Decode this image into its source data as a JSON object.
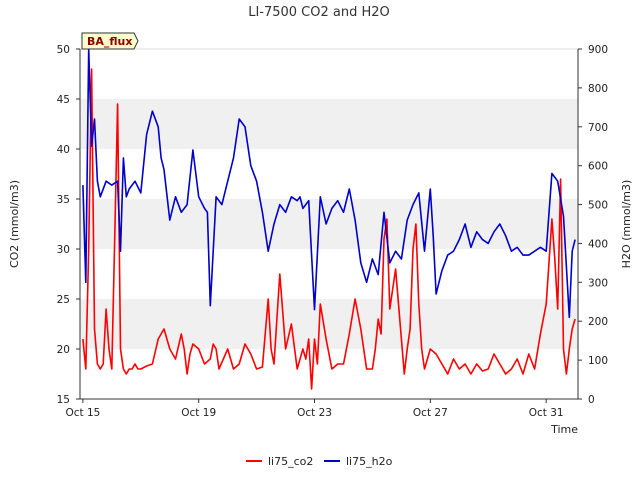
{
  "chart_data": {
    "type": "line",
    "title": "LI-7500 CO2 and H2O",
    "badge": "BA_flux",
    "xlabel": "Time",
    "ylabel_left": "CO2 (mmol/m3)",
    "ylabel_right": "H2O (mmol/m3)",
    "x_unit": "days since Oct 15 00:00",
    "xlim": [
      -0.1,
      17.1
    ],
    "ylim_left": [
      15,
      50
    ],
    "ylim_right": [
      0,
      900
    ],
    "yticks_left": [
      15,
      20,
      25,
      30,
      35,
      40,
      45,
      50
    ],
    "yticks_right": [
      0,
      100,
      200,
      300,
      400,
      500,
      600,
      700,
      800,
      900
    ],
    "xticks": [
      {
        "value": 0,
        "label": "Oct 15"
      },
      {
        "value": 4,
        "label": "Oct 19"
      },
      {
        "value": 8,
        "label": "Oct 23"
      },
      {
        "value": 12,
        "label": "Oct 27"
      },
      {
        "value": 16,
        "label": "Oct 31"
      }
    ],
    "shaded_bands_left_axis": [
      [
        20,
        25
      ],
      [
        30,
        35
      ],
      [
        40,
        45
      ]
    ],
    "series": [
      {
        "name": "li75_co2",
        "axis": "left",
        "color": "#ff0000",
        "x": [
          0.0,
          0.1,
          0.2,
          0.3,
          0.4,
          0.5,
          0.6,
          0.7,
          0.8,
          0.9,
          1.0,
          1.1,
          1.2,
          1.3,
          1.4,
          1.5,
          1.6,
          1.7,
          1.8,
          1.9,
          2.0,
          2.2,
          2.4,
          2.6,
          2.8,
          3.0,
          3.2,
          3.4,
          3.5,
          3.6,
          3.7,
          3.8,
          4.0,
          4.2,
          4.4,
          4.5,
          4.6,
          4.7,
          5.0,
          5.2,
          5.4,
          5.6,
          5.8,
          6.0,
          6.2,
          6.4,
          6.5,
          6.6,
          6.8,
          7.0,
          7.2,
          7.4,
          7.6,
          7.7,
          7.8,
          7.9,
          8.0,
          8.1,
          8.2,
          8.4,
          8.6,
          8.8,
          9.0,
          9.2,
          9.4,
          9.6,
          9.8,
          10.0,
          10.1,
          10.2,
          10.3,
          10.4,
          10.5,
          10.6,
          10.8,
          11.0,
          11.1,
          11.2,
          11.3,
          11.4,
          11.5,
          11.6,
          11.7,
          11.8,
          12.0,
          12.2,
          12.4,
          12.6,
          12.8,
          13.0,
          13.2,
          13.4,
          13.6,
          13.8,
          14.0,
          14.2,
          14.4,
          14.6,
          14.8,
          15.0,
          15.2,
          15.4,
          15.6,
          15.8,
          16.0,
          16.2,
          16.3,
          16.4,
          16.5,
          16.6,
          16.7,
          16.8,
          16.9,
          17.0
        ],
        "values": [
          21.0,
          18.0,
          30.0,
          48.0,
          22.0,
          18.5,
          18.0,
          18.5,
          24.0,
          20.0,
          18.0,
          31.0,
          44.5,
          20.0,
          18.0,
          17.5,
          18.0,
          18.0,
          18.5,
          18.0,
          18.0,
          18.3,
          18.5,
          21.0,
          22.0,
          20.0,
          19.0,
          21.5,
          20.0,
          17.5,
          19.5,
          20.5,
          20.0,
          18.5,
          19.0,
          20.5,
          20.0,
          18.0,
          20.0,
          18.0,
          18.5,
          20.5,
          19.5,
          18.0,
          18.2,
          25.0,
          20.0,
          18.5,
          27.5,
          20.0,
          22.5,
          18.0,
          20.0,
          19.0,
          21.0,
          16.0,
          21.0,
          18.5,
          24.5,
          21.0,
          18.0,
          18.5,
          18.5,
          21.5,
          25.0,
          22.0,
          18.0,
          18.0,
          20.0,
          23.0,
          21.5,
          31.0,
          33.0,
          24.0,
          28.0,
          21.0,
          17.5,
          20.0,
          22.0,
          30.0,
          32.5,
          24.5,
          20.0,
          18.0,
          20.0,
          19.5,
          18.5,
          17.5,
          19.0,
          18.0,
          18.5,
          17.5,
          18.5,
          17.8,
          18.0,
          19.5,
          18.5,
          17.5,
          18.0,
          19.0,
          17.5,
          19.5,
          18.0,
          21.5,
          24.5,
          33.0,
          29.0,
          24.0,
          37.0,
          20.0,
          17.5,
          20.0,
          22.0,
          23.0
        ]
      },
      {
        "name": "li75_h2o",
        "axis": "right",
        "color": "#0000cc",
        "x": [
          0.0,
          0.1,
          0.2,
          0.3,
          0.4,
          0.5,
          0.6,
          0.8,
          1.0,
          1.2,
          1.3,
          1.4,
          1.5,
          1.6,
          1.8,
          2.0,
          2.2,
          2.4,
          2.6,
          2.7,
          2.8,
          3.0,
          3.2,
          3.4,
          3.6,
          3.8,
          4.0,
          4.2,
          4.3,
          4.4,
          4.6,
          4.8,
          5.0,
          5.2,
          5.4,
          5.6,
          5.8,
          6.0,
          6.2,
          6.4,
          6.6,
          6.8,
          7.0,
          7.2,
          7.4,
          7.5,
          7.6,
          7.8,
          8.0,
          8.2,
          8.4,
          8.6,
          8.8,
          9.0,
          9.2,
          9.4,
          9.6,
          9.8,
          10.0,
          10.2,
          10.4,
          10.6,
          10.8,
          11.0,
          11.2,
          11.4,
          11.6,
          11.8,
          12.0,
          12.1,
          12.2,
          12.4,
          12.6,
          12.8,
          13.0,
          13.2,
          13.4,
          13.6,
          13.8,
          14.0,
          14.2,
          14.4,
          14.6,
          14.8,
          15.0,
          15.2,
          15.4,
          15.6,
          15.8,
          16.0,
          16.2,
          16.4,
          16.6,
          16.8,
          16.9,
          17.0
        ],
        "values": [
          550,
          300,
          900,
          650,
          720,
          560,
          520,
          560,
          550,
          560,
          380,
          620,
          520,
          540,
          560,
          530,
          680,
          740,
          700,
          620,
          590,
          460,
          520,
          480,
          500,
          640,
          520,
          490,
          480,
          240,
          520,
          500,
          560,
          620,
          720,
          700,
          600,
          560,
          480,
          380,
          450,
          500,
          480,
          520,
          510,
          520,
          490,
          510,
          230,
          520,
          450,
          490,
          510,
          480,
          540,
          460,
          350,
          300,
          360,
          320,
          480,
          350,
          380,
          360,
          460,
          500,
          530,
          380,
          540,
          420,
          270,
          330,
          370,
          380,
          410,
          450,
          390,
          430,
          410,
          400,
          430,
          450,
          420,
          380,
          390,
          370,
          370,
          380,
          390,
          380,
          580,
          560,
          470,
          210,
          380,
          410
        ]
      }
    ],
    "legend": {
      "position": "bottom-center",
      "labels": [
        "li75_co2",
        "li75_h2o"
      ]
    }
  }
}
